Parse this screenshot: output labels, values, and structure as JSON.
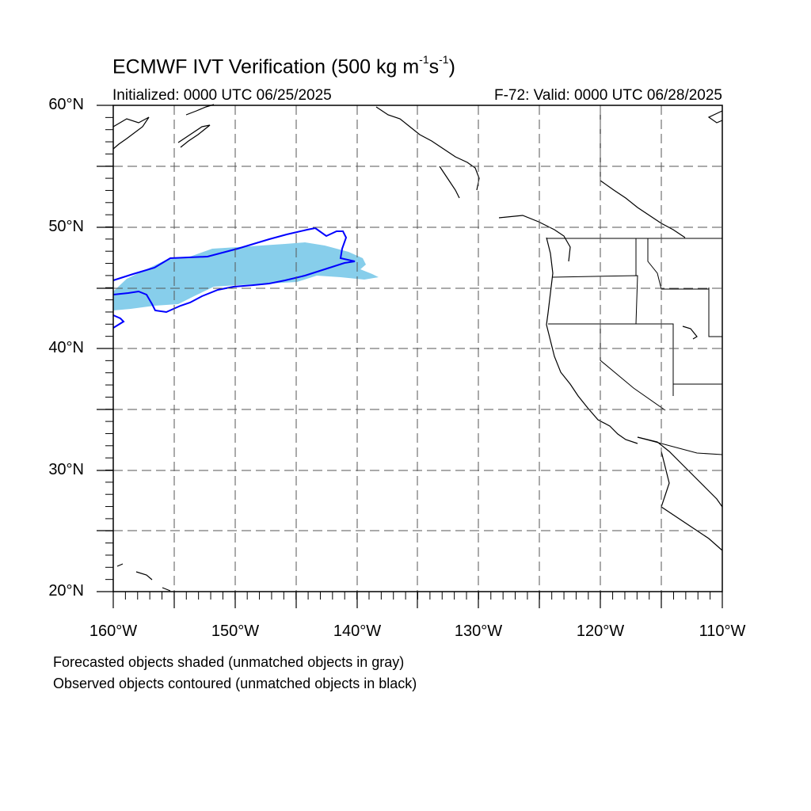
{
  "title": {
    "prefix": "ECMWF IVT Verification (500 kg m",
    "exp1": "-1",
    "middle": "s",
    "exp2": "-1",
    "suffix": ")"
  },
  "initialized": "Initialized: 0000 UTC 06/25/2025",
  "valid": "F-72: Valid: 0000 UTC 06/28/2025",
  "lat_labels": [
    "60°N",
    "50°N",
    "40°N",
    "30°N",
    "20°N"
  ],
  "lon_labels": [
    "160°W",
    "150°W",
    "140°W",
    "130°W",
    "120°W",
    "110°W"
  ],
  "footer": {
    "line1": "Forecasted objects shaded (unmatched objects in gray)",
    "line2": "Observed objects contoured (unmatched objects in black)"
  },
  "colors": {
    "forecast_fill": "#87ceeb",
    "observed_contour": "#0000ff",
    "coastline": "#000000",
    "grid": "#555555"
  }
}
